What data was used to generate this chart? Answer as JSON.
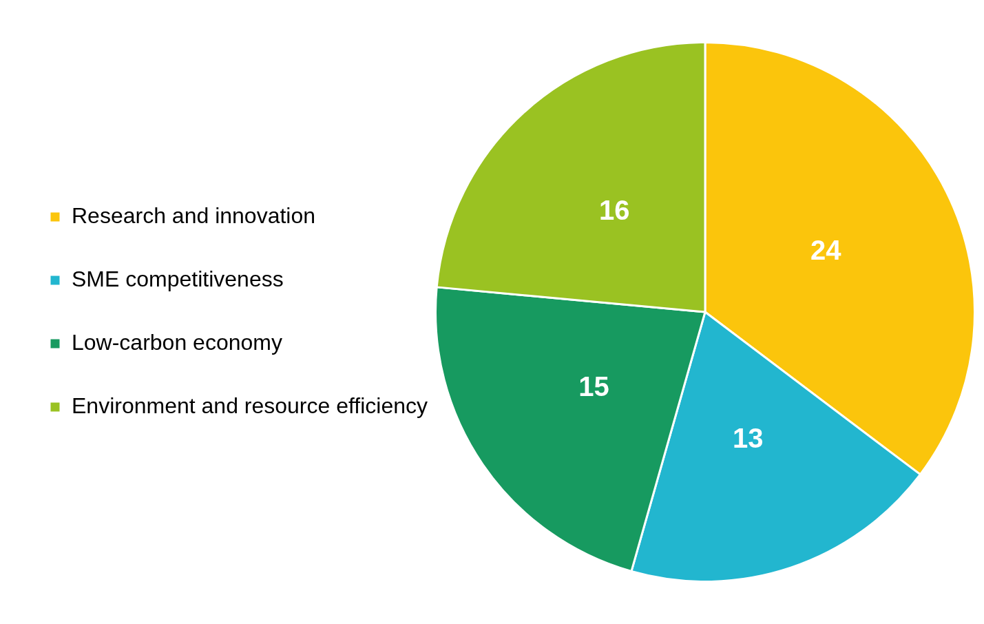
{
  "chart_data": {
    "type": "pie",
    "categories": [
      "Research and innovation",
      "SME competitiveness",
      "Low-carbon economy",
      "Environment and resource efficiency"
    ],
    "values": [
      24,
      13,
      15,
      16
    ],
    "colors": [
      "#fbc50c",
      "#22b6cf",
      "#179a60",
      "#9ac222"
    ],
    "data_labels": true,
    "legend": "left"
  }
}
